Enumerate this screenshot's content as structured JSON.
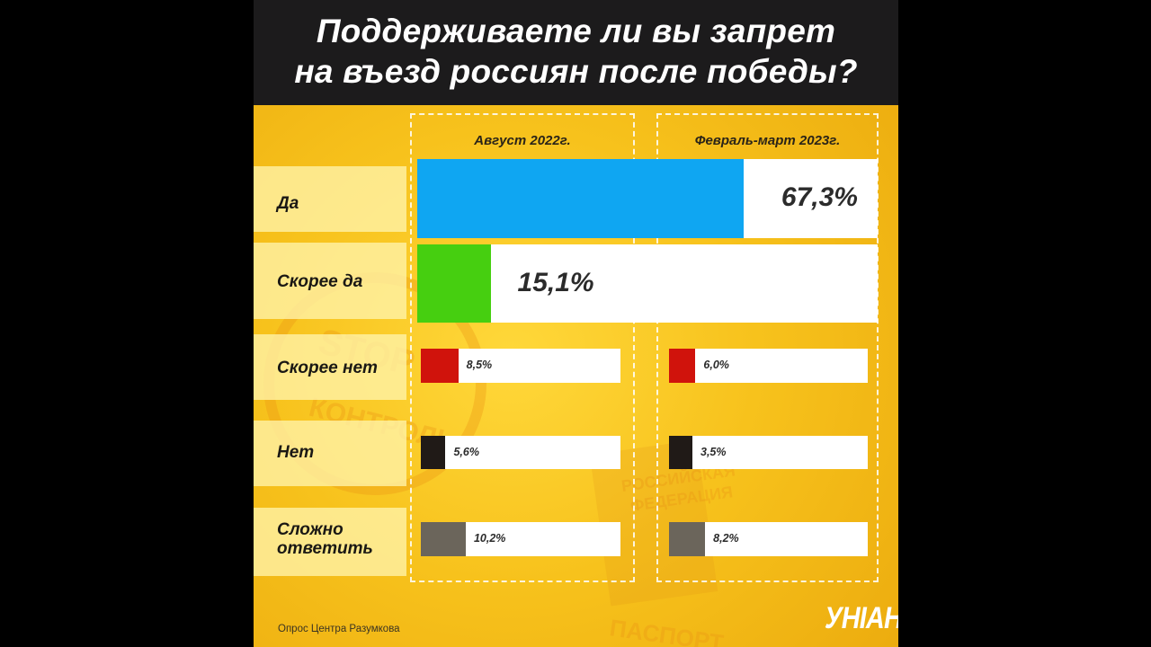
{
  "title": {
    "line1": "Поддерживаете ли вы запрет",
    "line2": "на въезд россиян после победы?"
  },
  "source": "Опрос Центра Разумкова",
  "brand": "УНІАН",
  "colors": {
    "yes": "#0fa6f2",
    "rather_yes": "#46cf10",
    "rather_no": "#d0130c",
    "no": "#201a17",
    "hard": "#6b655b"
  },
  "chart_data": {
    "type": "bar",
    "columns": [
      "Август 2022г.",
      "Февраль-март 2023г."
    ],
    "categories": [
      "Да",
      "Скорее да",
      "Скорее нет",
      "Нет",
      "Сложно ответить"
    ],
    "rows": [
      {
        "label": "Да",
        "color": "#0fa6f2",
        "spans_both": true,
        "values": [
          67.3
        ],
        "texts": [
          "67,3%"
        ]
      },
      {
        "label": "Скорее да",
        "color": "#46cf10",
        "spans_both": true,
        "values": [
          15.1
        ],
        "texts": [
          "15,1%"
        ]
      },
      {
        "label": "Скорее нет",
        "color": "#d0130c",
        "spans_both": false,
        "values": [
          8.5,
          6.0
        ],
        "texts": [
          "8,5%",
          "6,0%"
        ]
      },
      {
        "label": "Нет",
        "color": "#201a17",
        "spans_both": false,
        "values": [
          5.6,
          3.5
        ],
        "texts": [
          "5,6%",
          "3,5%"
        ]
      },
      {
        "label": "Сложно ответить",
        "color": "#6b655b",
        "spans_both": false,
        "values": [
          10.2,
          8.2
        ],
        "texts": [
          "10,2%",
          "8,2%"
        ]
      }
    ]
  }
}
